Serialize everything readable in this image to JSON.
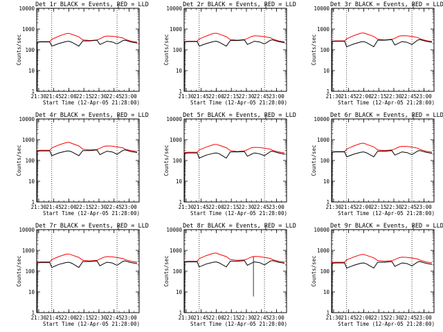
{
  "shared": {
    "xlabel": "Start Time (12-Apr-05 21:28:00)",
    "ylabel": "Counts/sec",
    "x_tick_labels": [
      "21:30",
      "21:45",
      "22:00",
      "22:15",
      "22:30",
      "22:45",
      "23:00"
    ],
    "y_tick_labels": [
      "1",
      "10",
      "100",
      "1000",
      "10000"
    ],
    "colors": {
      "events": "#000000",
      "lld": "#ff0000",
      "axes": "#000000"
    }
  },
  "chart_data": [
    {
      "type": "line",
      "title": "Det 1r BLACK = Events, RED = LLD",
      "x": [
        "21:28",
        "21:32",
        "21:41",
        "21:43",
        "21:50",
        "21:57",
        "22:00",
        "22:03",
        "22:10",
        "22:14",
        "22:21",
        "22:28",
        "22:31",
        "22:35",
        "22:38",
        "22:43",
        "22:48",
        "22:54",
        "22:56",
        "23:02",
        "23:08"
      ],
      "x_minutes_from_start": [
        0,
        4,
        13,
        15,
        22,
        29,
        32,
        35,
        42,
        46,
        53,
        60,
        63,
        67,
        70,
        75,
        80,
        86,
        88,
        94,
        100
      ],
      "yscale": "log",
      "ylim": [
        1,
        10000
      ],
      "vlines": [
        "21:43",
        "22:48"
      ],
      "series": [
        {
          "name": "LLD",
          "color": "#ff0000",
          "values": [
            240,
            250,
            250,
            320,
            450,
            600,
            620,
            560,
            420,
            300,
            280,
            300,
            340,
            430,
            460,
            450,
            420,
            370,
            320,
            260,
            230
          ]
        },
        {
          "name": "Events",
          "color": "#000000",
          "values": [
            230,
            240,
            240,
            150,
            200,
            250,
            260,
            230,
            150,
            270,
            270,
            290,
            180,
            220,
            260,
            240,
            190,
            280,
            290,
            240,
            210
          ]
        }
      ]
    },
    {
      "type": "line",
      "title": "Det 2r BLACK = Events, RED = LLD",
      "x": [
        "21:28",
        "21:32",
        "21:41",
        "21:43",
        "21:50",
        "21:57",
        "22:00",
        "22:03",
        "22:10",
        "22:14",
        "22:21",
        "22:28",
        "22:31",
        "22:35",
        "22:38",
        "22:43",
        "22:48",
        "22:54",
        "22:56",
        "23:02",
        "23:08"
      ],
      "x_minutes_from_start": [
        0,
        4,
        13,
        15,
        22,
        29,
        32,
        35,
        42,
        46,
        53,
        60,
        63,
        67,
        70,
        75,
        80,
        86,
        88,
        94,
        100
      ],
      "yscale": "log",
      "ylim": [
        1,
        10000
      ],
      "vlines": [
        "21:43",
        "22:48"
      ],
      "series": [
        {
          "name": "LLD",
          "color": "#ff0000",
          "values": [
            250,
            260,
            260,
            330,
            460,
            610,
            630,
            570,
            430,
            310,
            290,
            310,
            350,
            440,
            470,
            460,
            430,
            380,
            330,
            270,
            240
          ]
        },
        {
          "name": "Events",
          "color": "#000000",
          "values": [
            240,
            250,
            250,
            150,
            200,
            250,
            260,
            230,
            150,
            280,
            280,
            300,
            180,
            220,
            260,
            240,
            190,
            290,
            300,
            250,
            220
          ]
        }
      ]
    },
    {
      "type": "line",
      "title": "Det 3r BLACK = Events, RED = LLD",
      "x": [
        "21:28",
        "21:32",
        "21:41",
        "21:43",
        "21:50",
        "21:57",
        "22:00",
        "22:03",
        "22:10",
        "22:14",
        "22:21",
        "22:28",
        "22:31",
        "22:35",
        "22:38",
        "22:43",
        "22:48",
        "22:54",
        "22:56",
        "23:02",
        "23:08"
      ],
      "x_minutes_from_start": [
        0,
        4,
        13,
        15,
        22,
        29,
        32,
        35,
        42,
        46,
        53,
        60,
        63,
        67,
        70,
        75,
        80,
        86,
        88,
        94,
        100
      ],
      "yscale": "log",
      "ylim": [
        1,
        10000
      ],
      "vlines": [
        "21:43",
        "22:48"
      ],
      "series": [
        {
          "name": "LLD",
          "color": "#ff0000",
          "values": [
            260,
            270,
            270,
            340,
            480,
            630,
            650,
            580,
            440,
            320,
            300,
            320,
            360,
            450,
            480,
            470,
            440,
            390,
            340,
            280,
            250
          ]
        },
        {
          "name": "Events",
          "color": "#000000",
          "values": [
            250,
            260,
            260,
            140,
            190,
            240,
            250,
            220,
            140,
            290,
            290,
            310,
            170,
            210,
            250,
            230,
            180,
            300,
            310,
            260,
            230
          ]
        }
      ]
    },
    {
      "type": "line",
      "title": "Det 4r BLACK = Events, RED = LLD",
      "x": [
        "21:28",
        "21:32",
        "21:41",
        "21:43",
        "21:50",
        "21:57",
        "22:00",
        "22:03",
        "22:10",
        "22:14",
        "22:21",
        "22:28",
        "22:31",
        "22:35",
        "22:38",
        "22:43",
        "22:48",
        "22:54",
        "22:56",
        "23:02",
        "23:08"
      ],
      "x_minutes_from_start": [
        0,
        4,
        13,
        15,
        22,
        29,
        32,
        35,
        42,
        46,
        53,
        60,
        63,
        67,
        70,
        75,
        80,
        86,
        88,
        94,
        100
      ],
      "yscale": "log",
      "ylim": [
        1,
        10000
      ],
      "vlines": [
        "21:43",
        "22:48"
      ],
      "series": [
        {
          "name": "LLD",
          "color": "#ff0000",
          "values": [
            300,
            310,
            310,
            400,
            560,
            720,
            750,
            660,
            500,
            350,
            320,
            340,
            390,
            480,
            500,
            490,
            450,
            400,
            350,
            300,
            270
          ]
        },
        {
          "name": "Events",
          "color": "#000000",
          "values": [
            280,
            290,
            290,
            170,
            230,
            280,
            290,
            260,
            170,
            300,
            300,
            320,
            190,
            240,
            280,
            260,
            200,
            310,
            320,
            270,
            240
          ]
        }
      ]
    },
    {
      "type": "line",
      "title": "Det 5r BLACK = Events, RED = LLD",
      "x": [
        "21:28",
        "21:32",
        "21:41",
        "21:43",
        "21:50",
        "21:57",
        "22:00",
        "22:03",
        "22:10",
        "22:14",
        "22:21",
        "22:28",
        "22:31",
        "22:35",
        "22:38",
        "22:43",
        "22:48",
        "22:54",
        "22:56",
        "23:02",
        "23:08"
      ],
      "x_minutes_from_start": [
        0,
        4,
        13,
        15,
        22,
        29,
        32,
        35,
        42,
        46,
        53,
        60,
        63,
        67,
        70,
        75,
        80,
        86,
        88,
        94,
        100
      ],
      "yscale": "log",
      "ylim": [
        1,
        10000
      ],
      "vlines": [
        "21:43",
        "22:48"
      ],
      "series": [
        {
          "name": "LLD",
          "color": "#ff0000",
          "values": [
            240,
            250,
            250,
            320,
            440,
            580,
            600,
            540,
            410,
            300,
            270,
            290,
            330,
            410,
            430,
            420,
            390,
            350,
            310,
            260,
            230
          ]
        },
        {
          "name": "Events",
          "color": "#000000",
          "values": [
            220,
            230,
            230,
            130,
            180,
            220,
            230,
            210,
            130,
            260,
            260,
            270,
            160,
            200,
            230,
            210,
            170,
            270,
            280,
            230,
            200
          ]
        }
      ]
    },
    {
      "type": "line",
      "title": "Det 6r BLACK = Events, RED = LLD",
      "x": [
        "21:28",
        "21:32",
        "21:41",
        "21:43",
        "21:50",
        "21:57",
        "22:00",
        "22:03",
        "22:10",
        "22:14",
        "22:21",
        "22:28",
        "22:31",
        "22:35",
        "22:38",
        "22:43",
        "22:48",
        "22:54",
        "22:56",
        "23:02",
        "23:08"
      ],
      "x_minutes_from_start": [
        0,
        4,
        13,
        15,
        22,
        29,
        32,
        35,
        42,
        46,
        53,
        60,
        63,
        67,
        70,
        75,
        80,
        86,
        88,
        94,
        100
      ],
      "yscale": "log",
      "ylim": [
        1,
        10000
      ],
      "vlines": [
        "21:43",
        "22:48"
      ],
      "series": [
        {
          "name": "LLD",
          "color": "#ff0000",
          "values": [
            260,
            270,
            270,
            350,
            500,
            660,
            680,
            600,
            450,
            320,
            300,
            320,
            360,
            450,
            480,
            470,
            440,
            390,
            340,
            280,
            250
          ]
        },
        {
          "name": "Events",
          "color": "#000000",
          "values": [
            250,
            260,
            260,
            150,
            200,
            250,
            260,
            230,
            150,
            280,
            280,
            300,
            180,
            220,
            260,
            240,
            190,
            290,
            300,
            250,
            220
          ]
        }
      ]
    },
    {
      "type": "line",
      "title": "Det 7r BLACK = Events, RED = LLD",
      "x": [
        "21:28",
        "21:32",
        "21:41",
        "21:43",
        "21:50",
        "21:57",
        "22:00",
        "22:03",
        "22:10",
        "22:14",
        "22:21",
        "22:28",
        "22:31",
        "22:35",
        "22:38",
        "22:43",
        "22:48",
        "22:54",
        "22:56",
        "23:02",
        "23:08"
      ],
      "x_minutes_from_start": [
        0,
        4,
        13,
        15,
        22,
        29,
        32,
        35,
        42,
        46,
        53,
        60,
        63,
        67,
        70,
        75,
        80,
        86,
        88,
        94,
        100
      ],
      "yscale": "log",
      "ylim": [
        1,
        10000
      ],
      "vlines": [
        "21:43",
        "22:48"
      ],
      "series": [
        {
          "name": "LLD",
          "color": "#ff0000",
          "values": [
            270,
            280,
            280,
            360,
            500,
            650,
            670,
            600,
            460,
            330,
            310,
            330,
            380,
            470,
            500,
            490,
            450,
            400,
            360,
            300,
            270
          ]
        },
        {
          "name": "Events",
          "color": "#000000",
          "values": [
            250,
            260,
            260,
            150,
            210,
            260,
            270,
            240,
            150,
            290,
            290,
            310,
            180,
            230,
            270,
            250,
            190,
            300,
            310,
            260,
            230
          ]
        }
      ]
    },
    {
      "type": "line",
      "title": "Det 8r BLACK = Events, RED = LLD",
      "x": [
        "21:28",
        "21:32",
        "21:41",
        "21:43",
        "21:50",
        "21:57",
        "22:00",
        "22:03",
        "22:10",
        "22:14",
        "22:21",
        "22:28",
        "22:31",
        "22:35",
        "22:38",
        "22:43",
        "22:48",
        "22:54",
        "22:56",
        "23:02",
        "23:08"
      ],
      "x_minutes_from_start": [
        0,
        4,
        13,
        15,
        22,
        29,
        32,
        35,
        42,
        46,
        53,
        60,
        63,
        67,
        70,
        75,
        80,
        86,
        88,
        94,
        100
      ],
      "yscale": "log",
      "ylim": [
        1,
        10000
      ],
      "vlines": [
        "21:43",
        "22:48"
      ],
      "spike": {
        "x": "22:37",
        "x_minutes_from_start": 69,
        "value": 6
      },
      "series": [
        {
          "name": "LLD",
          "color": "#ff0000",
          "values": [
            290,
            300,
            300,
            400,
            560,
            720,
            740,
            650,
            500,
            360,
            330,
            350,
            390,
            480,
            510,
            500,
            460,
            410,
            360,
            300,
            270
          ]
        },
        {
          "name": "Events",
          "color": "#000000",
          "values": [
            270,
            280,
            280,
            160,
            220,
            270,
            280,
            250,
            160,
            300,
            300,
            320,
            190,
            240,
            280,
            260,
            200,
            310,
            320,
            270,
            240
          ]
        }
      ]
    },
    {
      "type": "line",
      "title": "Det 9r BLACK = Events, RED = LLD",
      "x": [
        "21:28",
        "21:32",
        "21:41",
        "21:43",
        "21:50",
        "21:57",
        "22:00",
        "22:03",
        "22:10",
        "22:14",
        "22:21",
        "22:28",
        "22:31",
        "22:35",
        "22:38",
        "22:43",
        "22:48",
        "22:54",
        "22:56",
        "23:02",
        "23:08"
      ],
      "x_minutes_from_start": [
        0,
        4,
        13,
        15,
        22,
        29,
        32,
        35,
        42,
        46,
        53,
        60,
        63,
        67,
        70,
        75,
        80,
        86,
        88,
        94,
        100
      ],
      "yscale": "log",
      "ylim": [
        1,
        10000
      ],
      "vlines": [
        "21:43",
        "22:48"
      ],
      "series": [
        {
          "name": "LLD",
          "color": "#ff0000",
          "values": [
            260,
            270,
            270,
            350,
            480,
            620,
            640,
            570,
            440,
            320,
            300,
            320,
            360,
            440,
            470,
            460,
            430,
            380,
            340,
            280,
            250
          ]
        },
        {
          "name": "Events",
          "color": "#000000",
          "values": [
            240,
            250,
            250,
            140,
            190,
            240,
            250,
            220,
            140,
            270,
            270,
            290,
            170,
            210,
            250,
            230,
            180,
            280,
            290,
            240,
            210
          ]
        }
      ]
    }
  ]
}
